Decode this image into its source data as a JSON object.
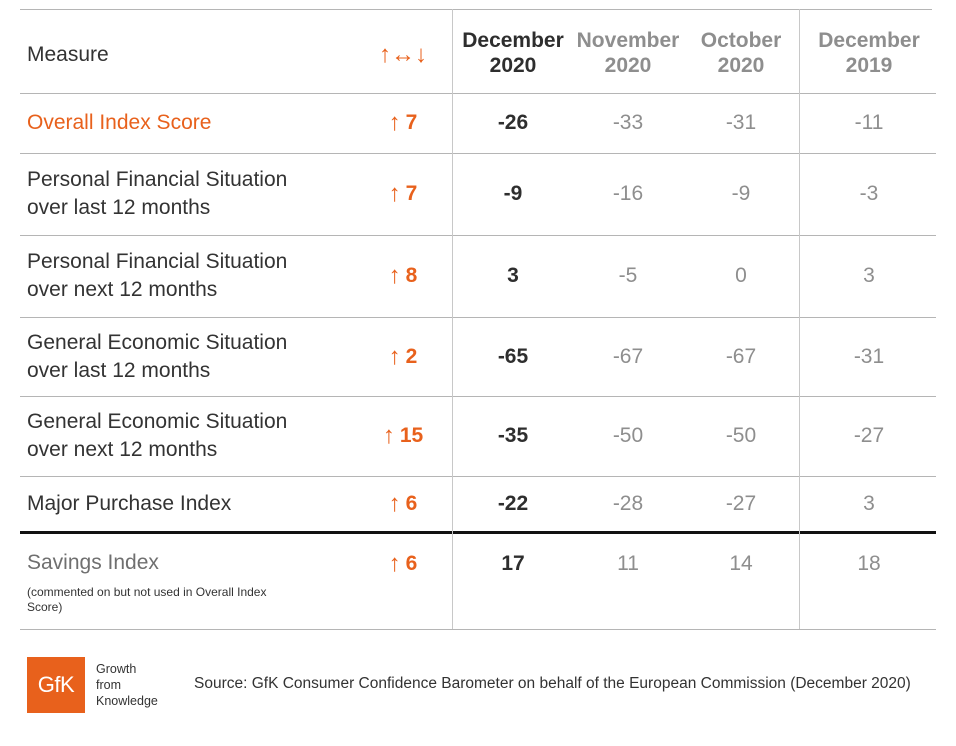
{
  "header": {
    "measure": "Measure",
    "change_arrows": "↑↔↓",
    "columns": [
      {
        "line1": "December",
        "line2": "2020"
      },
      {
        "line1": "November",
        "line2": "2020"
      },
      {
        "line1": "October",
        "line2": "2020"
      },
      {
        "line1": "December",
        "line2": "2019"
      }
    ]
  },
  "rows": [
    {
      "line1": "Overall Index Score",
      "line2": "",
      "change": "7",
      "values": [
        "-26",
        "-33",
        "-31",
        "-11"
      ]
    },
    {
      "line1": "Personal Financial Situation",
      "line2": "over last 12 months",
      "change": "7",
      "values": [
        "-9",
        "-16",
        "-9",
        "-3"
      ]
    },
    {
      "line1": "Personal Financial Situation",
      "line2": "over next 12 months",
      "change": "8",
      "values": [
        "3",
        "-5",
        "0",
        "3"
      ]
    },
    {
      "line1": "General Economic Situation",
      "line2": "over last 12 months",
      "change": "2",
      "values": [
        "-65",
        "-67",
        "-67",
        "-31"
      ]
    },
    {
      "line1": "General Economic Situation",
      "line2": "over next 12 months",
      "change": "15",
      "values": [
        "-35",
        "-50",
        "-50",
        "-27"
      ]
    },
    {
      "line1": "Major Purchase Index",
      "line2": "",
      "change": "6",
      "values": [
        "-22",
        "-28",
        "-27",
        "3"
      ]
    },
    {
      "line1": "Savings Index",
      "line2": "",
      "note": "(commented on but not used in Overall Index Score)",
      "change": "6",
      "values": [
        "17",
        "11",
        "14",
        "18"
      ]
    }
  ],
  "up_arrow": "↑",
  "footer": {
    "source": "Source: GfK Consumer Confidence Barometer on behalf of the European Commission (December 2020)",
    "logo_text": "GfK",
    "tagline": [
      "Growth",
      "from",
      "Knowledge"
    ]
  },
  "colors": {
    "accent": "#e8611c",
    "primary_text": "#2e2e2e",
    "muted_text": "#8e8e8e"
  }
}
